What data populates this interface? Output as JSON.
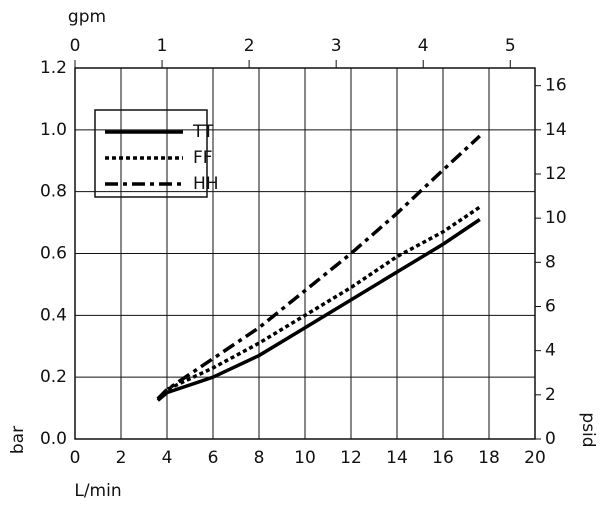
{
  "chart_data": {
    "type": "line",
    "xlabel": "L/min",
    "ylabel": "bar",
    "y2label": "psid",
    "x2label": "gpm",
    "xlim": [
      0,
      20
    ],
    "xticks": [
      0,
      2,
      4,
      6,
      8,
      10,
      12,
      14,
      16,
      18,
      20
    ],
    "x2lim": [
      0,
      5.284
    ],
    "x2ticks": [
      0,
      1,
      2,
      3,
      4,
      5
    ],
    "ylim": [
      0,
      1.2
    ],
    "yticks": [
      {
        "value": 0,
        "label": "0.0"
      },
      0.2,
      0.4,
      0.6,
      0.8,
      {
        "value": 1,
        "label": "1.0"
      },
      1.2
    ],
    "y2lim": [
      0,
      16.8
    ],
    "y2ticks": [
      0,
      2,
      4,
      6,
      8,
      10,
      12,
      14,
      16
    ],
    "grid": true,
    "legend": "upper left",
    "series": [
      {
        "name": "TT",
        "color": "#000000",
        "style": "solid",
        "x": [
          3.6,
          4,
          6,
          8,
          10,
          12,
          14,
          16,
          17.6
        ],
        "values": [
          0.125,
          0.15,
          0.2,
          0.27,
          0.36,
          0.45,
          0.54,
          0.63,
          0.71
        ]
      },
      {
        "name": "FF",
        "color": "#000000",
        "style": "dotted",
        "x": [
          3.6,
          4,
          6,
          8,
          10,
          12,
          14,
          16,
          17.6
        ],
        "values": [
          0.13,
          0.16,
          0.23,
          0.31,
          0.4,
          0.49,
          0.59,
          0.67,
          0.75
        ]
      },
      {
        "name": "HH",
        "color": "#000000",
        "style": "dashdot",
        "x": [
          3.6,
          4,
          6,
          8,
          10,
          12,
          14,
          16,
          17.6
        ],
        "values": [
          0.13,
          0.16,
          0.26,
          0.36,
          0.48,
          0.6,
          0.73,
          0.87,
          0.98
        ]
      }
    ]
  }
}
